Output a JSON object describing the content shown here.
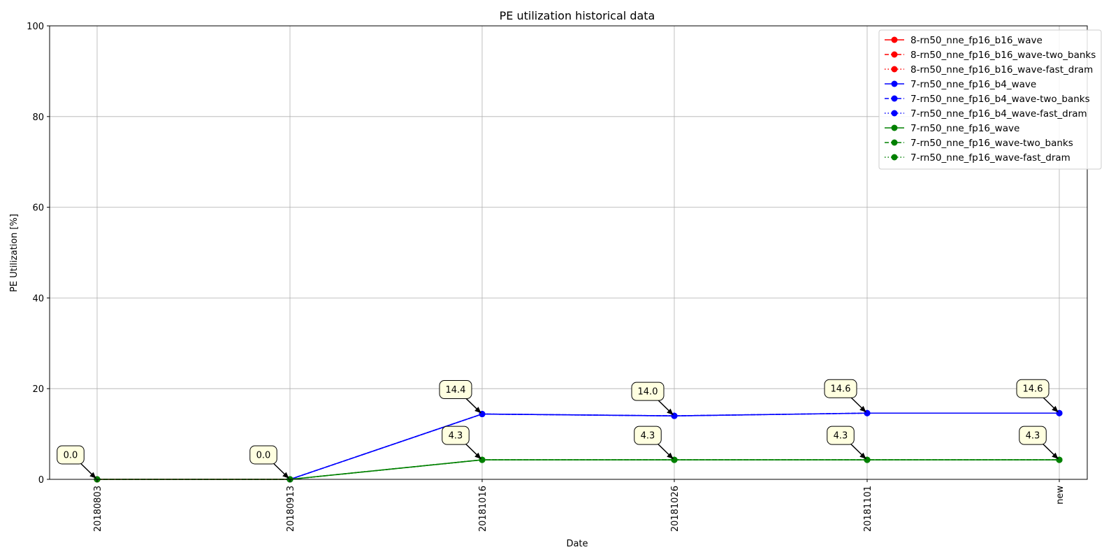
{
  "chart_data": {
    "type": "line",
    "title": "PE utilization historical data",
    "xlabel": "Date",
    "ylabel": "PE Utilization [%]",
    "categories": [
      "20180803",
      "20180913",
      "20181016",
      "20181026",
      "20181101",
      "new"
    ],
    "ylim": [
      0,
      100
    ],
    "yticks": [
      0,
      20,
      40,
      60,
      80,
      100
    ],
    "grid": true,
    "legend_position": "top-right",
    "colors": {
      "red": "#ff0000",
      "blue": "#0000ff",
      "green": "#008000"
    },
    "series": [
      {
        "name": "8-rn50_nne_fp16_b16_wave",
        "color": "red",
        "linestyle": "solid",
        "values": [
          0,
          0,
          null,
          null,
          null,
          null
        ]
      },
      {
        "name": "8-rn50_nne_fp16_b16_wave-two_banks",
        "color": "red",
        "linestyle": "dashed",
        "values": [
          0,
          0,
          null,
          null,
          null,
          null
        ]
      },
      {
        "name": "8-rn50_nne_fp16_b16_wave-fast_dram",
        "color": "red",
        "linestyle": "dotted",
        "values": [
          0,
          0,
          null,
          null,
          null,
          null
        ]
      },
      {
        "name": "7-rn50_nne_fp16_b4_wave",
        "color": "blue",
        "linestyle": "solid",
        "values": [
          null,
          0,
          14.4,
          14.0,
          14.6,
          14.6
        ]
      },
      {
        "name": "7-rn50_nne_fp16_b4_wave-two_banks",
        "color": "blue",
        "linestyle": "dashed",
        "values": [
          null,
          0,
          14.4,
          14.0,
          14.6,
          14.6
        ]
      },
      {
        "name": "7-rn50_nne_fp16_b4_wave-fast_dram",
        "color": "blue",
        "linestyle": "dotted",
        "values": [
          null,
          0,
          14.4,
          14.0,
          14.6,
          14.6
        ]
      },
      {
        "name": "7-rn50_nne_fp16_wave",
        "color": "green",
        "linestyle": "solid",
        "values": [
          0,
          0,
          4.3,
          4.3,
          4.3,
          4.3
        ]
      },
      {
        "name": "7-rn50_nne_fp16_wave-two_banks",
        "color": "green",
        "linestyle": "dashed",
        "values": [
          0,
          0,
          4.3,
          4.3,
          4.3,
          4.3
        ]
      },
      {
        "name": "7-rn50_nne_fp16_wave-fast_dram",
        "color": "green",
        "linestyle": "dotted",
        "values": [
          0,
          0,
          4.3,
          4.3,
          4.3,
          4.3
        ]
      }
    ],
    "annotations": [
      {
        "x": "20180803",
        "y": 0.0,
        "text": "0.0"
      },
      {
        "x": "20180913",
        "y": 0.0,
        "text": "0.0"
      },
      {
        "x": "20181016",
        "y": 14.4,
        "text": "14.4"
      },
      {
        "x": "20181016",
        "y": 4.3,
        "text": "4.3"
      },
      {
        "x": "20181026",
        "y": 14.0,
        "text": "14.0"
      },
      {
        "x": "20181026",
        "y": 4.3,
        "text": "4.3"
      },
      {
        "x": "20181101",
        "y": 14.6,
        "text": "14.6"
      },
      {
        "x": "20181101",
        "y": 4.3,
        "text": "4.3"
      },
      {
        "x": "new",
        "y": 14.6,
        "text": "14.6"
      },
      {
        "x": "new",
        "y": 4.3,
        "text": "4.3"
      }
    ]
  }
}
